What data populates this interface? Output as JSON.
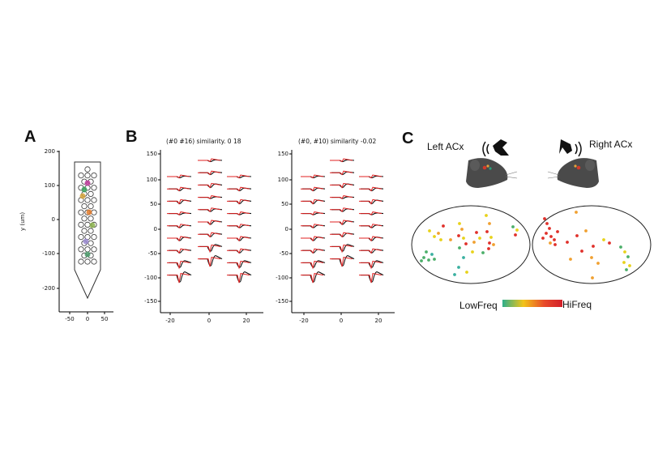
{
  "panel_a": {
    "letter": "A",
    "y_axis_label": "y (um)",
    "y_ticks": [
      "200",
      "100",
      "0",
      "-100",
      "-200"
    ],
    "x_ticks": [
      "-50",
      "0",
      "50"
    ],
    "unit_colors": [
      "#c0399b",
      "#3aa05a",
      "#d4a23a",
      "#e07a2a",
      "#8ab04a",
      "#9a8ad0",
      "#4a9a6a"
    ]
  },
  "panel_b": {
    "letter": "B",
    "title_left": "(#0  #16) similarity. 0 18",
    "title_right": "(#0, #10) similarity -0.02",
    "y_ticks": [
      "150",
      "100",
      "50",
      "0",
      "-50",
      "-100",
      "-150"
    ],
    "x_ticks": [
      "-20",
      "0",
      "20"
    ],
    "colors": {
      "template": "#e02020",
      "mean": "#111111"
    }
  },
  "panel_c": {
    "letter": "C",
    "left_label": "Left ACx",
    "right_label": "Right ACx",
    "colorbar_low": "LowFreq",
    "colorbar_high": "HiFreq",
    "colorbar_colors": [
      "#2eaf8a",
      "#f2c318",
      "#e84a2a",
      "#d21f2a"
    ]
  }
}
